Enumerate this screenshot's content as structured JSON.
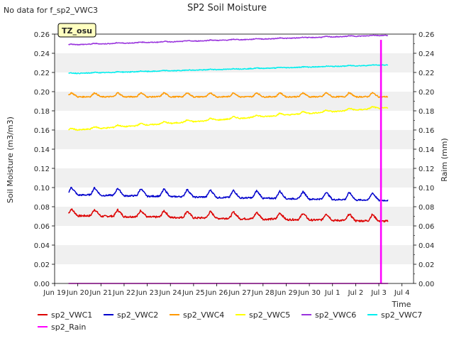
{
  "chart_data": {
    "type": "line",
    "title": "SP2 Soil Moisture",
    "nodata_note": "No data for f_sp2_VWC3",
    "site_label": "TZ_osu",
    "xlabel": "Time",
    "ylabel": "Soil Moisture (m3/m3)",
    "y2label": "Raim (mm)",
    "xlim": [
      0,
      15.5
    ],
    "ylim": [
      0,
      0.26
    ],
    "y2lim": [
      0,
      0.26
    ],
    "x_ticks": [
      {
        "pos": 0,
        "label": "Jun 19"
      },
      {
        "pos": 1,
        "label": "Jun 20"
      },
      {
        "pos": 2,
        "label": "Jun 21"
      },
      {
        "pos": 3,
        "label": "Jun 22"
      },
      {
        "pos": 4,
        "label": "Jun 23"
      },
      {
        "pos": 5,
        "label": "Jun 24"
      },
      {
        "pos": 6,
        "label": "Jun 25"
      },
      {
        "pos": 7,
        "label": "Jun 26"
      },
      {
        "pos": 8,
        "label": "Jun 27"
      },
      {
        "pos": 9,
        "label": "Jun 28"
      },
      {
        "pos": 10,
        "label": "Jun 29"
      },
      {
        "pos": 11,
        "label": "Jun 30"
      },
      {
        "pos": 12,
        "label": "Jul 1"
      },
      {
        "pos": 13,
        "label": "Jul 2"
      },
      {
        "pos": 14,
        "label": "Jul 3"
      },
      {
        "pos": 15,
        "label": "Jul 4"
      }
    ],
    "y_ticks": [
      "0.00",
      "0.02",
      "0.04",
      "0.06",
      "0.08",
      "0.10",
      "0.12",
      "0.14",
      "0.16",
      "0.18",
      "0.20",
      "0.22",
      "0.24",
      "0.26"
    ],
    "y2_ticks": [
      "0.00",
      "0.02",
      "0.04",
      "0.06",
      "0.08",
      "0.10",
      "0.12",
      "0.14",
      "0.16",
      "0.18",
      "0.20",
      "0.22",
      "0.24",
      "0.26"
    ],
    "series": [
      {
        "name": "sp2_VWC1",
        "color": "#dd0000",
        "x_range": [
          0.6,
          14.4
        ],
        "start": 0.073,
        "end": 0.067,
        "cycle_amp": 0.008,
        "noise": 0.001
      },
      {
        "name": "sp2_VWC2",
        "color": "#0000cc",
        "x_range": [
          0.6,
          14.4
        ],
        "start": 0.095,
        "end": 0.089,
        "cycle_amp": 0.009,
        "noise": 0.0008
      },
      {
        "name": "sp2_VWC4",
        "color": "#ff9900",
        "x_range": [
          0.6,
          14.4
        ],
        "start": 0.196,
        "end": 0.196,
        "cycle_amp": 0.005,
        "noise": 0.0006
      },
      {
        "name": "sp2_VWC5",
        "color": "#ffff00",
        "x_range": [
          0.6,
          14.4
        ],
        "start": 0.16,
        "end": 0.184,
        "cycle_amp": 0.0025,
        "noise": 0.0006
      },
      {
        "name": "sp2_VWC6",
        "color": "#9933dd",
        "x_range": [
          0.6,
          14.4
        ],
        "start": 0.249,
        "end": 0.259,
        "cycle_amp": 0.0008,
        "noise": 0.0004
      },
      {
        "name": "sp2_VWC7",
        "color": "#00eeee",
        "x_range": [
          0.6,
          14.4
        ],
        "start": 0.219,
        "end": 0.228,
        "cycle_amp": 0.0006,
        "noise": 0.0004
      },
      {
        "name": "sp2_Rain",
        "color": "#ff00ff",
        "x_range": [
          0.6,
          14.4
        ],
        "baseline": 0.0,
        "spike": {
          "x": 14.08,
          "value": 0.254,
          "width_days": 0.05
        }
      }
    ],
    "legend": [
      {
        "name": "sp2_VWC1",
        "color": "#dd0000"
      },
      {
        "name": "sp2_VWC2",
        "color": "#0000cc"
      },
      {
        "name": "sp2_VWC4",
        "color": "#ff9900"
      },
      {
        "name": "sp2_VWC5",
        "color": "#ffff00"
      },
      {
        "name": "sp2_VWC6",
        "color": "#9933dd"
      },
      {
        "name": "sp2_VWC7",
        "color": "#00eeee"
      },
      {
        "name": "sp2_Rain",
        "color": "#ff00ff"
      }
    ]
  }
}
